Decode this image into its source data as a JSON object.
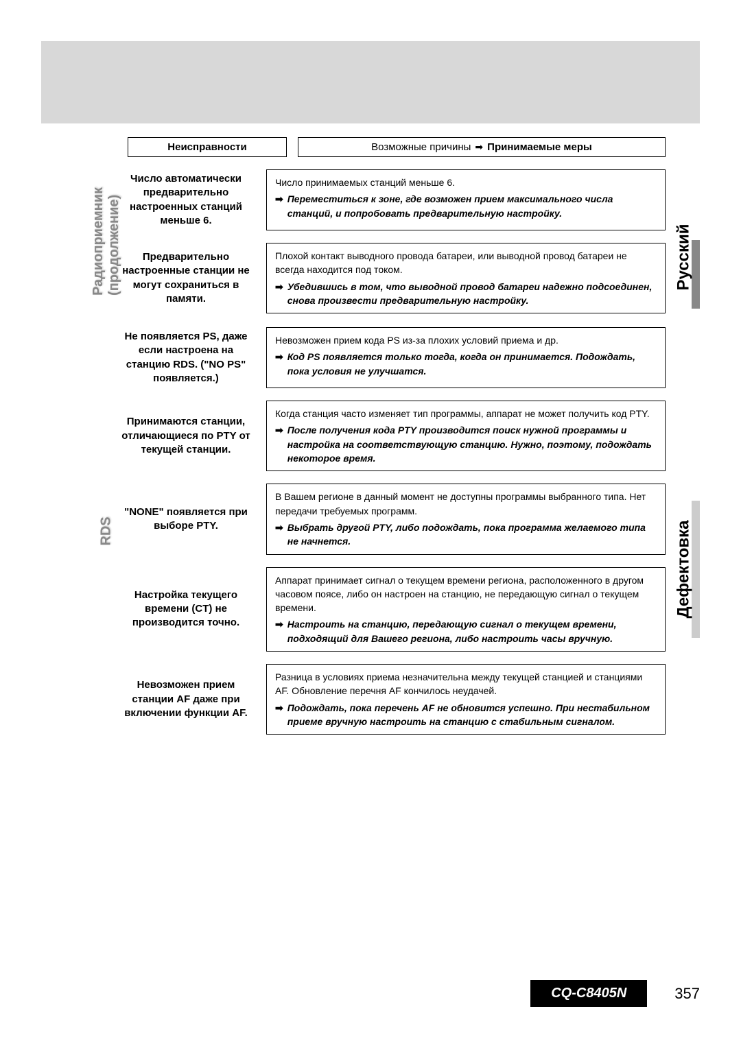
{
  "colors": {
    "topbar_bg": "#d8d8d8",
    "border": "#000000",
    "section_label": "#888888",
    "tab_accent": "#888888",
    "tab_light": "#cccccc",
    "model_bg": "#000000",
    "model_fg": "#ffffff"
  },
  "header": {
    "problems_label": "Неисправности",
    "causes_prefix": "Возможные причины",
    "causes_suffix": "Принимаемые меры"
  },
  "sections": [
    {
      "label_main": "Радиоприемник",
      "label_sub": "(продолжение)",
      "rows": [
        {
          "problem": "Число автоматически предварительно настроенных станций меньше 6.",
          "cause": "Число принимаемых станций меньше 6.",
          "remedy": "Переместиться к зоне, где возможен прием максимального числа станций, и попробовать предварительную настройку."
        },
        {
          "problem": "Предварительно настроенные станции не могут сохраниться в памяти.",
          "cause": "Плохой контакт выводного провода батареи, или выводной провод батареи не всегда находится под током.",
          "remedy": "Убедившись в том, что выводной провод батареи надежно подсоединен, снова произвести предварительную настройку."
        }
      ]
    },
    {
      "label_main": "RDS",
      "label_sub": "",
      "rows": [
        {
          "problem": "Не появляется PS, даже если настроена на станцию RDS. (\"NO PS\" появляется.)",
          "cause": "Невозможен прием кода PS из-за плохих условий приема и др.",
          "remedy": "Код PS появляется только тогда, когда он принимается. Подождать, пока условия не улучшатся."
        },
        {
          "problem": "Принимаются станции, отличающиеся по PTY от текущей станции.",
          "cause": "Когда станция часто изменяет тип программы, аппарат не может получить код PTY.",
          "remedy": "После получения кода PTY производится поиск нужной программы и настройка на соответствующую станцию. Нужно, поэтому, подождать некоторое время."
        },
        {
          "problem": "\"NONE\" появляется при выборе PTY.",
          "cause": "В Вашем регионе в данный момент не доступны программы выбранного типа. Нет передачи требуемых программ.",
          "remedy": "Выбрать другой PTY, либо подождать, пока программа желаемого типа не начнется."
        },
        {
          "problem": "Настройка текущего времени (CT) не производится точно.",
          "cause": "Аппарат принимает сигнал о текущем времени региона, расположенного в другом часовом поясе, либо он настроен на станцию, не передающую сигнал о текущем времени.",
          "remedy": "Настроить на станцию, передающую сигнал о текущем времени, подходящий для Вашего региона, либо настроить часы вручную."
        },
        {
          "problem": "Невозможен прием станции AF даже при включении функции AF.",
          "cause": "Разница в условиях приема незначительна между текущей станцией и станциями AF. Обновление перечня AF кончилось неудачей.",
          "remedy": "Подождать, пока перечень AF не обновится успешно. При нестабильном приеме вручную настроить на станцию с стабильным сигналом."
        }
      ]
    }
  ],
  "right_tabs": {
    "language": "Русский",
    "section": "Дефектовка"
  },
  "footer": {
    "model": "CQ-C8405N",
    "page": "357"
  }
}
